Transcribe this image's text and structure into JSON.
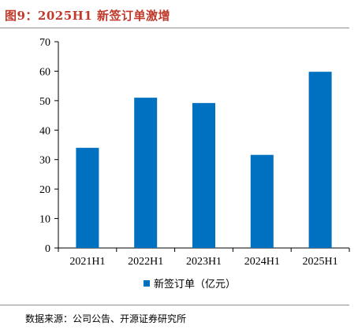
{
  "title": "图9：2025H1 新签订单激增",
  "source": "数据来源：公司公告、开源证券研究所",
  "chart_data": {
    "type": "bar",
    "categories": [
      "2021H1",
      "2022H1",
      "2023H1",
      "2024H1",
      "2025H1"
    ],
    "series": [
      {
        "name": "新签订单（亿元）",
        "values": [
          34,
          51,
          49.2,
          31.6,
          59.8
        ],
        "color": "#0070c0"
      }
    ],
    "ylim": [
      0,
      70
    ],
    "yticks": [
      0,
      10,
      20,
      30,
      40,
      50,
      60,
      70
    ],
    "grid": false,
    "legend": "bottom"
  }
}
